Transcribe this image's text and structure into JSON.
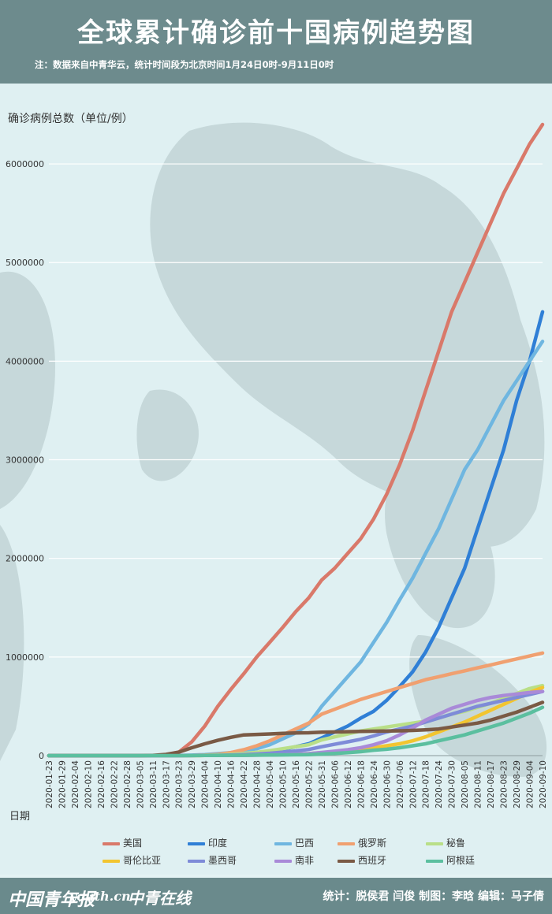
{
  "header": {
    "title": "全球累计确诊前十国病例趋势图",
    "note": "注：数据来自中青华云，统计时间段为北京时间1月24日0时-9月11日0时"
  },
  "footer": {
    "logo1": "中国青年报",
    "logo2": "youth.cn",
    "logo3": "中青在线",
    "credit": "统计：脱侯君 闫俊 制图：李晗 编辑：马子倩"
  },
  "colors": {
    "header_bg": "#6d8b8d",
    "background": "#e4f3f4",
    "map_land": "#c6d6d8",
    "grid": "#ffffff"
  },
  "chart_data": {
    "type": "line",
    "ylabel": "确诊病例总数（单位/例）",
    "xlabel": "日期",
    "ylim": [
      0,
      6400000
    ],
    "yticks": [
      0,
      1000000,
      2000000,
      3000000,
      4000000,
      5000000,
      6000000
    ],
    "ytick_labels": [
      "0",
      "1000000",
      "2000000",
      "3000000",
      "4000000",
      "5000000",
      "6000000"
    ],
    "x": [
      "2020-01-23",
      "2020-01-29",
      "2020-02-04",
      "2020-02-10",
      "2020-02-16",
      "2020-02-22",
      "2020-02-28",
      "2020-03-05",
      "2020-03-11",
      "2020-03-17",
      "2020-03-23",
      "2020-03-29",
      "2020-04-04",
      "2020-04-10",
      "2020-04-16",
      "2020-04-22",
      "2020-04-28",
      "2020-05-04",
      "2020-05-10",
      "2020-05-16",
      "2020-05-22",
      "2020-05-31",
      "2020-06-06",
      "2020-06-12",
      "2020-06-18",
      "2020-06-24",
      "2020-06-30",
      "2020-07-06",
      "2020-07-12",
      "2020-07-18",
      "2020-07-24",
      "2020-07-30",
      "2020-08-05",
      "2020-08-11",
      "2020-08-17",
      "2020-08-23",
      "2020-08-29",
      "2020-09-04",
      "2020-09-10"
    ],
    "grid": true,
    "legend_position": "bottom",
    "series": [
      {
        "name": "美国",
        "color": "#d9796a",
        "values": [
          0,
          0,
          0,
          0,
          0,
          0,
          0,
          0,
          1000,
          6000,
          35000,
          140000,
          300000,
          500000,
          670000,
          830000,
          1000000,
          1150000,
          1300000,
          1460000,
          1600000,
          1780000,
          1900000,
          2050000,
          2200000,
          2400000,
          2650000,
          2950000,
          3300000,
          3700000,
          4100000,
          4500000,
          4800000,
          5100000,
          5400000,
          5700000,
          5950000,
          6200000,
          6400000
        ]
      },
      {
        "name": "印度",
        "color": "#2f7fd6",
        "values": [
          0,
          0,
          0,
          0,
          0,
          0,
          0,
          0,
          0,
          0,
          400,
          1000,
          3000,
          7000,
          13000,
          20000,
          30000,
          45000,
          65000,
          90000,
          120000,
          180000,
          240000,
          300000,
          380000,
          450000,
          560000,
          700000,
          850000,
          1050000,
          1300000,
          1600000,
          1900000,
          2300000,
          2700000,
          3100000,
          3600000,
          4000000,
          4500000
        ]
      },
      {
        "name": "巴西",
        "color": "#6fb6e0",
        "values": [
          0,
          0,
          0,
          0,
          0,
          0,
          0,
          0,
          0,
          100,
          1500,
          5000,
          10000,
          20000,
          30000,
          45000,
          70000,
          110000,
          170000,
          230000,
          320000,
          500000,
          650000,
          800000,
          950000,
          1150000,
          1350000,
          1580000,
          1800000,
          2050000,
          2300000,
          2600000,
          2900000,
          3100000,
          3350000,
          3600000,
          3800000,
          4000000,
          4200000
        ]
      },
      {
        "name": "俄罗斯",
        "color": "#f0a070",
        "values": [
          0,
          0,
          0,
          0,
          0,
          0,
          0,
          0,
          0,
          100,
          500,
          1500,
          5000,
          12000,
          30000,
          60000,
          100000,
          150000,
          210000,
          270000,
          330000,
          420000,
          470000,
          520000,
          570000,
          610000,
          650000,
          690000,
          730000,
          770000,
          800000,
          830000,
          860000,
          890000,
          920000,
          950000,
          980000,
          1010000,
          1040000
        ]
      },
      {
        "name": "秘鲁",
        "color": "#b9df88",
        "values": [
          0,
          0,
          0,
          0,
          0,
          0,
          0,
          0,
          0,
          100,
          400,
          1000,
          2000,
          6000,
          13000,
          22000,
          33000,
          50000,
          70000,
          90000,
          110000,
          160000,
          190000,
          220000,
          250000,
          270000,
          290000,
          310000,
          330000,
          350000,
          380000,
          420000,
          450000,
          490000,
          530000,
          580000,
          630000,
          680000,
          710000
        ]
      },
      {
        "name": "哥伦比亚",
        "color": "#f2c530",
        "values": [
          0,
          0,
          0,
          0,
          0,
          0,
          0,
          0,
          0,
          0,
          200,
          700,
          1400,
          2500,
          3500,
          4500,
          6000,
          8000,
          11000,
          15000,
          20000,
          30000,
          40000,
          50000,
          60000,
          80000,
          100000,
          120000,
          150000,
          190000,
          240000,
          290000,
          340000,
          400000,
          460000,
          520000,
          580000,
          640000,
          690000
        ]
      },
      {
        "name": "墨西哥",
        "color": "#7e8bd8",
        "values": [
          0,
          0,
          0,
          0,
          0,
          0,
          0,
          0,
          0,
          0,
          300,
          1000,
          2000,
          3500,
          6000,
          10000,
          16000,
          24000,
          35000,
          47000,
          62000,
          90000,
          115000,
          140000,
          165000,
          200000,
          240000,
          270000,
          300000,
          340000,
          380000,
          420000,
          460000,
          500000,
          530000,
          560000,
          590000,
          620000,
          650000
        ]
      },
      {
        "name": "南非",
        "color": "#a98ad8",
        "values": [
          0,
          0,
          0,
          0,
          0,
          0,
          0,
          0,
          0,
          0,
          400,
          1200,
          1600,
          2000,
          2800,
          3500,
          5000,
          7000,
          10000,
          15000,
          20000,
          32000,
          45000,
          60000,
          80000,
          110000,
          150000,
          210000,
          280000,
          360000,
          420000,
          480000,
          520000,
          560000,
          590000,
          610000,
          625000,
          640000,
          650000
        ]
      },
      {
        "name": "西班牙",
        "color": "#7a5a45",
        "values": [
          0,
          0,
          0,
          0,
          0,
          0,
          0,
          0,
          2000,
          12000,
          35000,
          80000,
          120000,
          155000,
          185000,
          210000,
          215000,
          220000,
          225000,
          230000,
          232000,
          237000,
          240000,
          243000,
          245000,
          248000,
          250000,
          252000,
          256000,
          262000,
          270000,
          290000,
          310000,
          330000,
          360000,
          400000,
          440000,
          490000,
          540000
        ]
      },
      {
        "name": "阿根廷",
        "color": "#5bbf9f",
        "values": [
          0,
          0,
          0,
          0,
          0,
          0,
          0,
          0,
          0,
          0,
          200,
          800,
          1500,
          2000,
          2800,
          3500,
          4500,
          5500,
          7000,
          8500,
          10000,
          16000,
          22000,
          30000,
          40000,
          55000,
          65000,
          80000,
          100000,
          120000,
          150000,
          180000,
          210000,
          250000,
          290000,
          330000,
          380000,
          430000,
          490000
        ]
      }
    ]
  }
}
